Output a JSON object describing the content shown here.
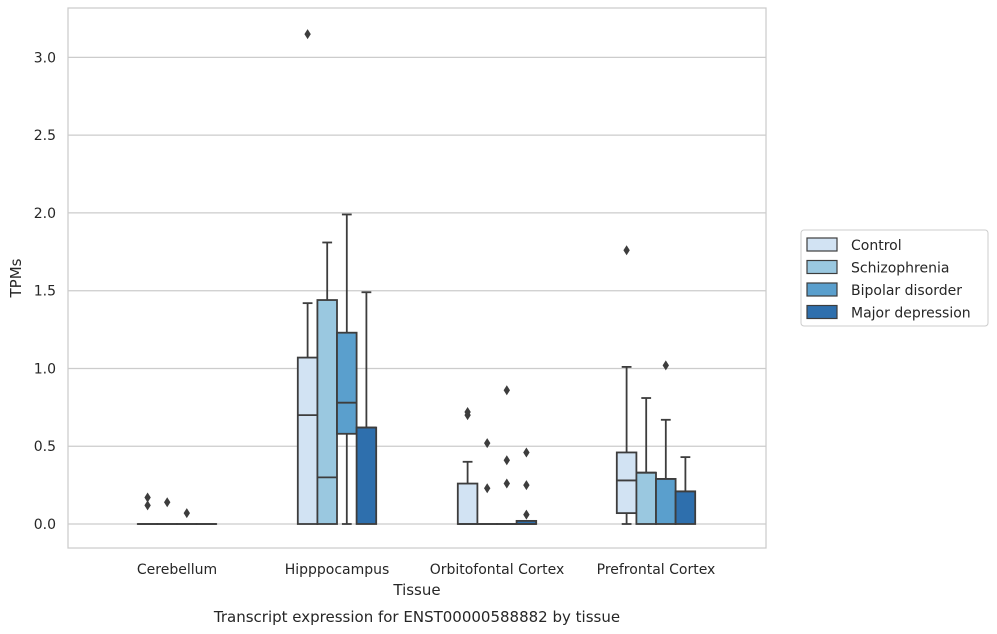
{
  "chart_data": {
    "type": "box",
    "xlabel": "Tissue",
    "ylabel": "TPMs",
    "caption": "Transcript expression for ENST00000588882 by tissue",
    "ylim": [
      -0.15,
      3.32
    ],
    "yticks": [
      "0.0",
      "0.5",
      "1.0",
      "1.5",
      "2.0",
      "2.5",
      "3.0"
    ],
    "grid": "horizontal",
    "legend_position": "right",
    "categories": [
      "Cerebellum",
      "Hipppocampus",
      "Orbitofontal Cortex",
      "Prefrontal Cortex"
    ],
    "series": [
      {
        "name": "Control",
        "color": "#d2e3f3",
        "boxes": [
          {
            "q1": 0,
            "median": 0,
            "q3": 0,
            "whisker_low": 0,
            "whisker_high": 0,
            "outliers": [
              0.12,
              0.17
            ]
          },
          {
            "q1": 0,
            "median": 0.7,
            "q3": 1.07,
            "whisker_low": 0,
            "whisker_high": 1.42,
            "outliers": [
              3.15
            ]
          },
          {
            "q1": 0,
            "median": 0,
            "q3": 0.26,
            "whisker_low": 0,
            "whisker_high": 0.4,
            "outliers": [
              0.7,
              0.72
            ]
          },
          {
            "q1": 0.07,
            "median": 0.28,
            "q3": 0.46,
            "whisker_low": 0,
            "whisker_high": 1.01,
            "outliers": [
              1.76
            ]
          }
        ]
      },
      {
        "name": "Schizophrenia",
        "color": "#9ac8e0",
        "boxes": [
          {
            "q1": 0,
            "median": 0,
            "q3": 0,
            "whisker_low": 0,
            "whisker_high": 0,
            "outliers": [
              0.14
            ]
          },
          {
            "q1": 0,
            "median": 0.3,
            "q3": 1.44,
            "whisker_low": 0,
            "whisker_high": 1.81,
            "outliers": []
          },
          {
            "q1": 0,
            "median": 0,
            "q3": 0,
            "whisker_low": 0,
            "whisker_high": 0,
            "outliers": [
              0.23,
              0.52
            ]
          },
          {
            "q1": 0,
            "median": 0.33,
            "q3": 0.33,
            "whisker_low": 0,
            "whisker_high": 0.81,
            "outliers": []
          }
        ]
      },
      {
        "name": "Bipolar disorder",
        "color": "#5a9fcd",
        "boxes": [
          {
            "q1": 0,
            "median": 0,
            "q3": 0,
            "whisker_low": 0,
            "whisker_high": 0,
            "outliers": [
              0.07
            ]
          },
          {
            "q1": 0.58,
            "median": 0.78,
            "q3": 1.23,
            "whisker_low": 0,
            "whisker_high": 1.99,
            "outliers": []
          },
          {
            "q1": 0,
            "median": 0,
            "q3": 0,
            "whisker_low": 0,
            "whisker_high": 0,
            "outliers": [
              0.26,
              0.41,
              0.86
            ]
          },
          {
            "q1": 0,
            "median": 0.29,
            "q3": 0.29,
            "whisker_low": 0,
            "whisker_high": 0.67,
            "outliers": [
              1.02
            ]
          }
        ]
      },
      {
        "name": "Major depression",
        "color": "#2e6fad",
        "boxes": [
          {
            "q1": 0,
            "median": 0,
            "q3": 0,
            "whisker_low": 0,
            "whisker_high": 0,
            "outliers": []
          },
          {
            "q1": 0,
            "median": 0.62,
            "q3": 0.62,
            "whisker_low": 0,
            "whisker_high": 1.49,
            "outliers": []
          },
          {
            "q1": 0,
            "median": 0,
            "q3": 0.02,
            "whisker_low": 0,
            "whisker_high": 0.02,
            "outliers": [
              0.06,
              0.25,
              0.46
            ]
          },
          {
            "q1": 0,
            "median": 0.21,
            "q3": 0.21,
            "whisker_low": 0,
            "whisker_high": 0.43,
            "outliers": []
          }
        ]
      }
    ]
  }
}
